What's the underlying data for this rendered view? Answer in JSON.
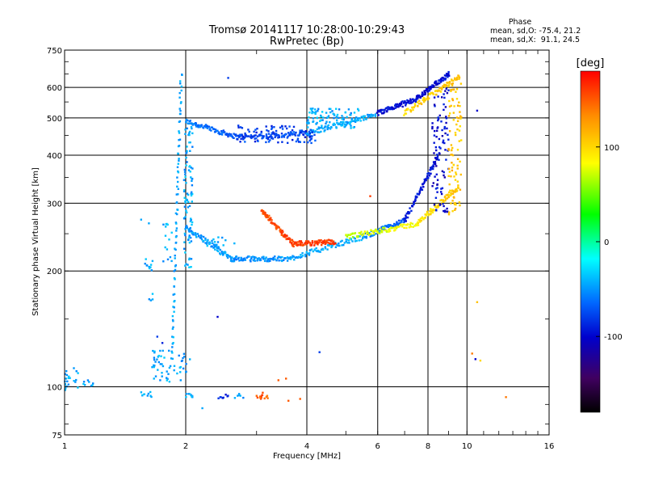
{
  "chart_data": {
    "type": "scatter",
    "title": "Tromsø 20141117 10:28:00-10:29:43",
    "subtitle": "RwPretec (Bp)",
    "stats": {
      "header": "Phase",
      "line_O": "mean, sd,O: -75.4, 21.2",
      "line_X": "mean, sd,X:  91.1, 24.5"
    },
    "xlabel": "Frequency [MHz]",
    "ylabel": "Stationary phase Virtual Height [km]",
    "x_scale": "log",
    "y_scale": "log",
    "xlim": [
      1,
      16
    ],
    "ylim": [
      75,
      750
    ],
    "xticks": [
      1,
      2,
      4,
      6,
      8,
      10,
      16
    ],
    "xtick_labels": [
      "1",
      "2",
      "4",
      "6",
      "8",
      "10",
      "16"
    ],
    "yticks": [
      75,
      100,
      200,
      300,
      400,
      500,
      600,
      750
    ],
    "ytick_labels": [
      "75",
      "100",
      "200",
      "300",
      "400",
      "500",
      "600",
      "750"
    ],
    "grid": true,
    "colorbar": {
      "label": "[deg]",
      "range": [
        -180,
        180
      ],
      "ticks": [
        100,
        0,
        -100
      ],
      "tick_labels": [
        "100",
        "0",
        "-100"
      ],
      "colors": [
        "#ff0000",
        "#ff8c00",
        "#ffff00",
        "#00ff00",
        "#00ffff",
        "#0066ff",
        "#0000cc",
        "#400060",
        "#000000"
      ]
    },
    "traces": [
      {
        "x0": 2.0,
        "x1": 2.7,
        "h0": 490,
        "h1": 445,
        "phase0": -55,
        "phase1": -75
      },
      {
        "x0": 2.7,
        "x1": 4.0,
        "h0": 445,
        "h1": 455,
        "phase0": -80,
        "phase1": -70
      },
      {
        "x0": 4.0,
        "x1": 5.9,
        "h0": 455,
        "h1": 510,
        "phase0": -45,
        "phase1": -45
      },
      {
        "x0": 6.0,
        "x1": 7.5,
        "h0": 515,
        "h1": 560,
        "phase0": -95,
        "phase1": -95
      },
      {
        "x0": 7.5,
        "x1": 9.0,
        "h0": 560,
        "h1": 650,
        "phase0": -100,
        "phase1": -95
      },
      {
        "x0": 7.0,
        "x1": 9.6,
        "h0": 515,
        "h1": 640,
        "phase0": 100,
        "phase1": 110
      },
      {
        "x0": 2.0,
        "x1": 2.6,
        "h0": 260,
        "h1": 215,
        "phase0": -50,
        "phase1": -45
      },
      {
        "x0": 2.6,
        "x1": 3.6,
        "h0": 215,
        "h1": 215,
        "phase0": -55,
        "phase1": -50
      },
      {
        "x0": 3.6,
        "x1": 5.5,
        "h0": 215,
        "h1": 245,
        "phase0": -45,
        "phase1": -45
      },
      {
        "x0": 5.5,
        "x1": 7.0,
        "h0": 245,
        "h1": 270,
        "phase0": -50,
        "phase1": -75
      },
      {
        "x0": 7.0,
        "x1": 8.5,
        "h0": 270,
        "h1": 400,
        "phase0": -90,
        "phase1": -95
      },
      {
        "x0": 5.0,
        "x1": 7.5,
        "h0": 245,
        "h1": 265,
        "phase0": 70,
        "phase1": 85
      },
      {
        "x0": 7.5,
        "x1": 9.5,
        "h0": 265,
        "h1": 330,
        "phase0": 90,
        "phase1": 110
      },
      {
        "x0": 3.1,
        "x1": 3.7,
        "h0": 285,
        "h1": 235,
        "phase0": 150,
        "phase1": 160
      },
      {
        "x0": 3.7,
        "x1": 4.7,
        "h0": 235,
        "h1": 238,
        "phase0": 160,
        "phase1": 160
      },
      {
        "x0": 1.85,
        "x1": 1.95,
        "h0": 120,
        "h1": 650,
        "phase0": -45,
        "phase1": -45
      }
    ],
    "spread_regions": [
      {
        "x0": 8.2,
        "x1": 9.0,
        "h0": 280,
        "h1": 620,
        "phase": -100
      },
      {
        "x0": 9.0,
        "x1": 9.7,
        "h0": 280,
        "h1": 620,
        "phase": 110
      },
      {
        "x0": 2.7,
        "x1": 4.2,
        "h0": 430,
        "h1": 480,
        "phase": -80
      },
      {
        "x0": 4.0,
        "x1": 5.4,
        "h0": 470,
        "h1": 530,
        "phase": -45
      },
      {
        "x0": 1.98,
        "x1": 2.08,
        "h0": 200,
        "h1": 500,
        "phase": -45
      }
    ],
    "clusters": [
      {
        "x0": 1.0,
        "x1": 1.08,
        "h0": 98,
        "h1": 112,
        "phase": -45,
        "n": 22
      },
      {
        "x0": 1.08,
        "x1": 1.18,
        "h0": 100,
        "h1": 104,
        "phase": -45,
        "n": 8
      },
      {
        "x0": 1.55,
        "x1": 1.65,
        "h0": 94,
        "h1": 97,
        "phase": -45,
        "n": 10
      },
      {
        "x0": 1.65,
        "x1": 1.95,
        "h0": 103,
        "h1": 125,
        "phase": -45,
        "n": 45
      },
      {
        "x0": 1.95,
        "x1": 2.05,
        "h0": 108,
        "h1": 122,
        "phase": -45,
        "n": 10
      },
      {
        "x0": 2.0,
        "x1": 2.1,
        "h0": 93,
        "h1": 96,
        "phase": -45,
        "n": 8
      },
      {
        "x0": 2.4,
        "x1": 2.55,
        "h0": 93,
        "h1": 96,
        "phase": -90,
        "n": 8
      },
      {
        "x0": 2.6,
        "x1": 2.8,
        "h0": 93,
        "h1": 96,
        "phase": -45,
        "n": 8
      },
      {
        "x0": 3.0,
        "x1": 3.2,
        "h0": 93,
        "h1": 97,
        "phase": 150,
        "n": 14
      },
      {
        "x0": 1.58,
        "x1": 1.66,
        "h0": 200,
        "h1": 215,
        "phase": -45,
        "n": 10
      },
      {
        "x0": 1.62,
        "x1": 1.66,
        "h0": 165,
        "h1": 175,
        "phase": -45,
        "n": 4
      },
      {
        "x0": 1.75,
        "x1": 1.85,
        "h0": 200,
        "h1": 270,
        "phase": -45,
        "n": 14
      },
      {
        "x0": 2.1,
        "x1": 2.7,
        "h0": 230,
        "h1": 245,
        "phase": -45,
        "n": 14
      }
    ],
    "scatter_points": [
      {
        "x": 2.2,
        "h": 88,
        "phase": -45
      },
      {
        "x": 2.4,
        "h": 152,
        "phase": -100
      },
      {
        "x": 2.55,
        "h": 635,
        "phase": -80
      },
      {
        "x": 3.4,
        "h": 104,
        "phase": 150
      },
      {
        "x": 3.55,
        "h": 105,
        "phase": 150
      },
      {
        "x": 3.6,
        "h": 92,
        "phase": 150
      },
      {
        "x": 3.85,
        "h": 93,
        "phase": 150
      },
      {
        "x": 4.3,
        "h": 123,
        "phase": -80
      },
      {
        "x": 5.75,
        "h": 313,
        "phase": 160
      },
      {
        "x": 10.3,
        "h": 122,
        "phase": 140
      },
      {
        "x": 10.5,
        "h": 118,
        "phase": -100
      },
      {
        "x": 10.8,
        "h": 117,
        "phase": 100
      },
      {
        "x": 10.6,
        "h": 166,
        "phase": 110
      },
      {
        "x": 10.6,
        "h": 522,
        "phase": -100
      },
      {
        "x": 12.5,
        "h": 94,
        "phase": 140
      },
      {
        "x": 1.75,
        "h": 130,
        "phase": -90
      },
      {
        "x": 1.7,
        "h": 135,
        "phase": -80
      },
      {
        "x": 1.55,
        "h": 272,
        "phase": -45
      },
      {
        "x": 1.62,
        "h": 266,
        "phase": -45
      }
    ]
  }
}
